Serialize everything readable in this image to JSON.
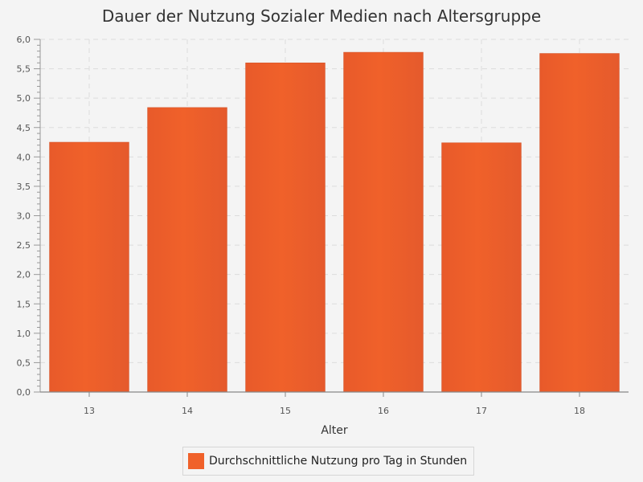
{
  "chart_data": {
    "type": "bar",
    "title": "Dauer der Nutzung Sozialer Medien nach Altersgruppe",
    "xlabel": "Alter",
    "ylabel": "",
    "categories": [
      "13",
      "14",
      "15",
      "16",
      "17",
      "18"
    ],
    "series": [
      {
        "name": "Durchschnittliche Nutzung pro Tag in Stunden",
        "values": [
          4.25,
          4.84,
          5.6,
          5.78,
          4.24,
          5.76
        ]
      }
    ],
    "ylim": [
      0,
      6
    ],
    "ytick_step": 0.5,
    "ytick_labels": [
      "0,0",
      "0,5",
      "1,0",
      "1,5",
      "2,0",
      "2,5",
      "3,0",
      "3,5",
      "4,0",
      "4,5",
      "5,0",
      "5,5",
      "6,0"
    ],
    "grid": true,
    "legend_position": "bottom",
    "bar_color": "#f0612a"
  }
}
